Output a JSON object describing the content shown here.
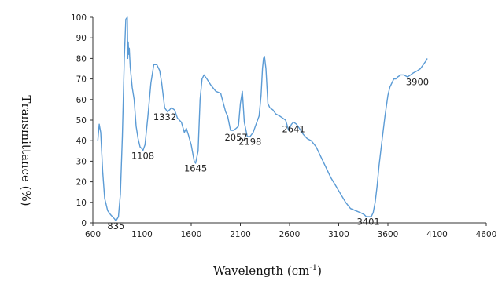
{
  "chart_data": {
    "type": "line",
    "title": "",
    "xlabel": "Wavelength (cm",
    "xlabel_sup": "-1",
    "xlabel_close": ")",
    "ylabel": "Transmittance (%)",
    "xlim": [
      600,
      4600
    ],
    "ylim": [
      0,
      100
    ],
    "xticks": [
      600,
      1100,
      1600,
      2100,
      2600,
      3100,
      3600,
      4100,
      4600
    ],
    "yticks": [
      0,
      10,
      20,
      30,
      40,
      50,
      60,
      70,
      80,
      90,
      100
    ],
    "grid": false,
    "legend": "none",
    "line_color": "#5b9bd5",
    "annotations": [
      {
        "label": "835",
        "x": 835,
        "y": 2
      },
      {
        "label": "1108",
        "x": 1108,
        "y": 36
      },
      {
        "label": "1332",
        "x": 1332,
        "y": 55
      },
      {
        "label": "1645",
        "x": 1645,
        "y": 30
      },
      {
        "label": "2057",
        "x": 2057,
        "y": 45
      },
      {
        "label": "2198",
        "x": 2198,
        "y": 43
      },
      {
        "label": "2641",
        "x": 2641,
        "y": 49
      },
      {
        "label": "3401",
        "x": 3401,
        "y": 4
      },
      {
        "label": "3900",
        "x": 3900,
        "y": 72
      }
    ],
    "series": [
      {
        "x": [
          650,
          665,
          680,
          700,
          720,
          750,
          780,
          820,
          835,
          860,
          880,
          900,
          920,
          935,
          950,
          955,
          960,
          965,
          970,
          980,
          1000,
          1020,
          1040,
          1060,
          1080,
          1100,
          1108,
          1130,
          1160,
          1190,
          1220,
          1250,
          1280,
          1300,
          1330,
          1360,
          1400,
          1430,
          1460,
          1500,
          1530,
          1550,
          1570,
          1600,
          1630,
          1645,
          1670,
          1690,
          1710,
          1730,
          1760,
          1800,
          1850,
          1900,
          1950,
          1970,
          2000,
          2030,
          2057,
          2080,
          2100,
          2120,
          2140,
          2170,
          2198,
          2230,
          2260,
          2290,
          2310,
          2325,
          2335,
          2345,
          2360,
          2380,
          2400,
          2430,
          2460,
          2500,
          2530,
          2560,
          2590,
          2620,
          2641,
          2670,
          2700,
          2740,
          2780,
          2820,
          2870,
          2920,
          2970,
          3020,
          3070,
          3120,
          3170,
          3220,
          3270,
          3320,
          3360,
          3380,
          3401,
          3430,
          3450,
          3470,
          3490,
          3510,
          3540,
          3570,
          3600,
          3620,
          3640,
          3660,
          3680,
          3700,
          3730,
          3760,
          3800,
          3830,
          3860,
          3900,
          3930,
          3960,
          3990,
          4000
        ],
        "y": [
          40,
          48,
          44,
          25,
          12,
          6,
          4,
          2,
          1,
          3,
          14,
          42,
          80,
          99,
          100,
          80,
          88,
          82,
          85,
          76,
          66,
          60,
          47,
          41,
          37,
          36,
          35,
          38,
          52,
          68,
          77,
          77,
          74,
          68,
          56,
          54,
          56,
          55,
          51,
          49,
          44,
          46,
          43,
          38,
          30,
          29,
          35,
          60,
          70,
          72,
          70,
          67,
          64,
          63,
          54,
          52,
          45,
          45,
          46,
          47,
          58,
          64,
          49,
          42,
          42,
          44,
          48,
          52,
          62,
          75,
          80,
          81,
          75,
          58,
          56,
          55,
          53,
          52,
          51,
          50,
          45,
          48,
          49,
          48,
          46,
          43,
          41,
          40,
          37,
          32,
          27,
          22,
          18,
          14,
          10,
          7,
          6,
          5,
          4,
          3,
          3,
          3,
          5,
          10,
          18,
          28,
          40,
          52,
          62,
          66,
          68,
          70,
          70,
          71,
          72,
          72,
          71,
          72,
          73,
          74,
          75,
          77,
          79,
          80
        ]
      }
    ]
  }
}
